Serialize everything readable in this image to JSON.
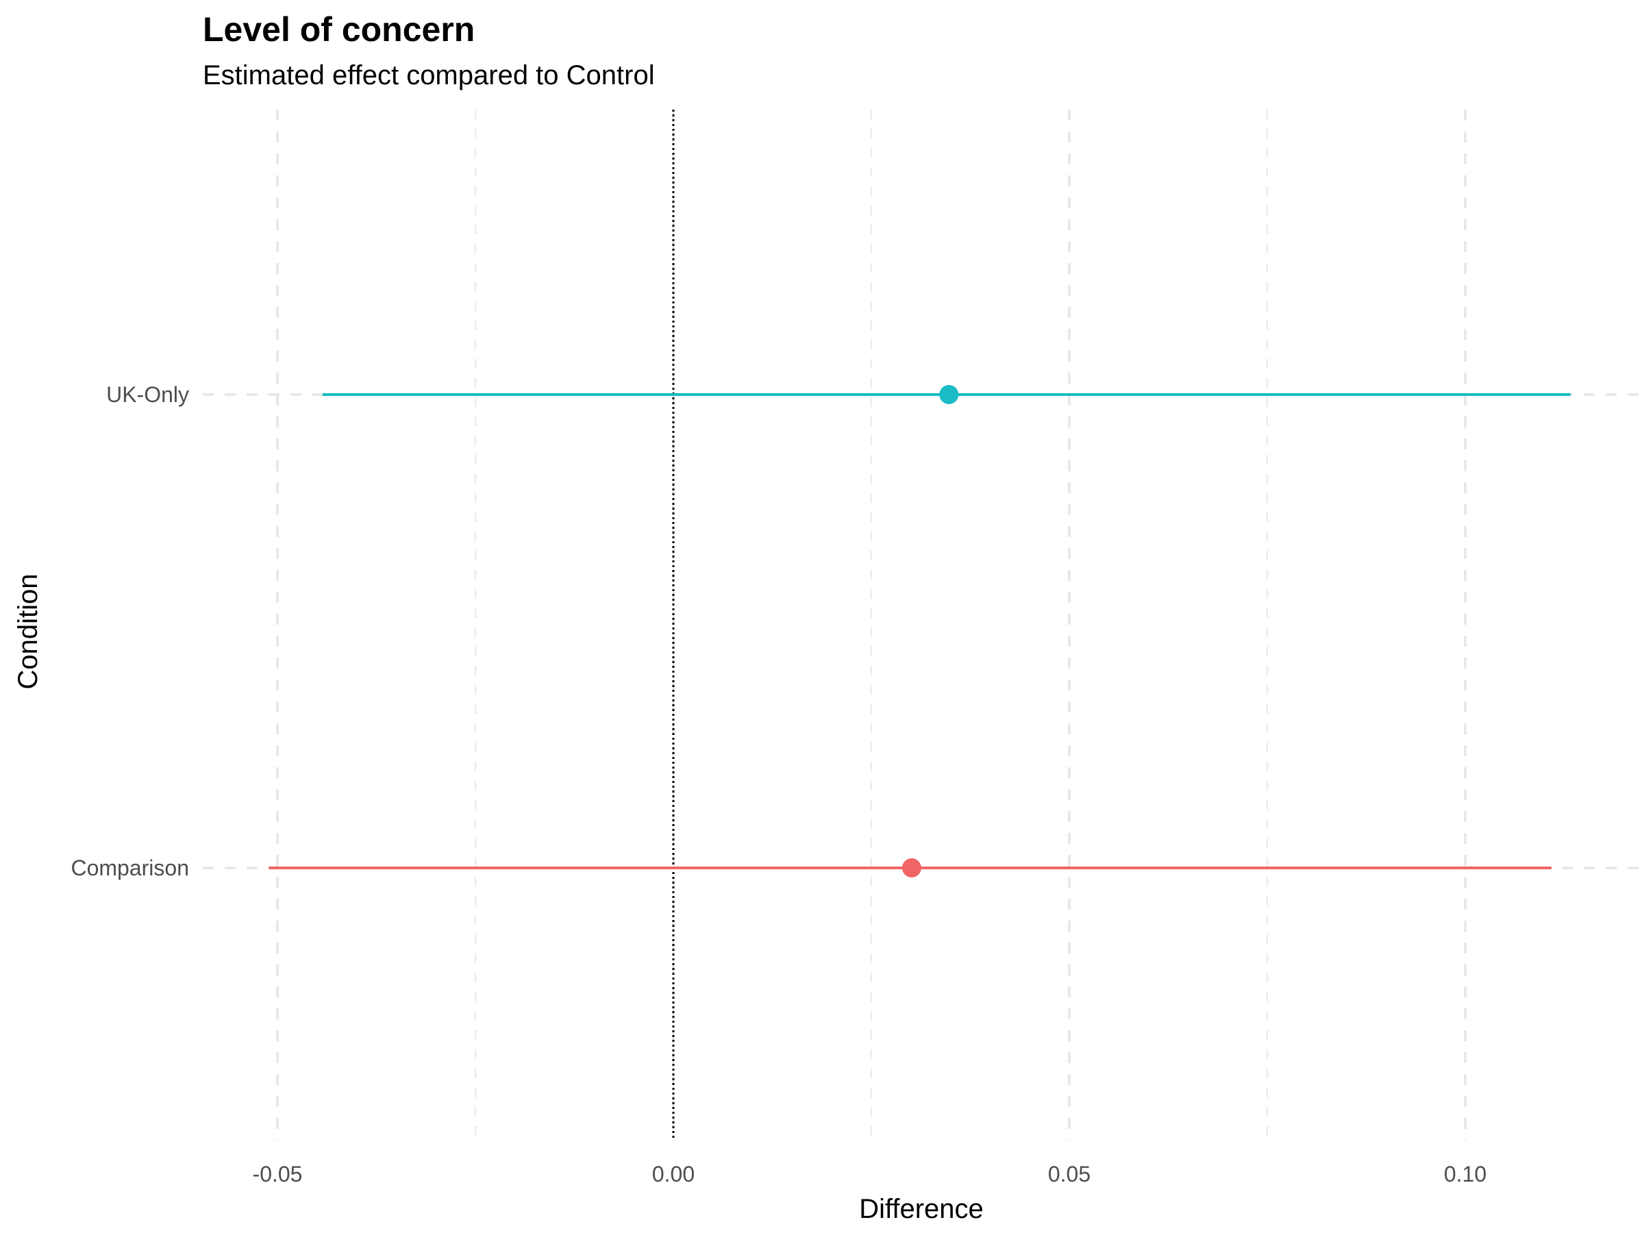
{
  "chart_data": {
    "type": "scatter",
    "title": "Level of concern",
    "subtitle": "Estimated effect compared to Control",
    "xlabel": "Difference",
    "ylabel": "Condition",
    "xlim": [
      -0.0667,
      0.1213
    ],
    "x_ticks": [
      -0.05,
      0.0,
      0.05,
      0.1
    ],
    "x_tick_labels": [
      "-0.05",
      "0.00",
      "0.05",
      "0.10"
    ],
    "x_minor_ticks": [
      -0.025,
      0.025,
      0.075
    ],
    "categories": [
      "Comparison",
      "UK-Only"
    ],
    "reference_line": 0,
    "grid": true,
    "legend": "none",
    "series": [
      {
        "category": "UK-Only",
        "estimate": 0.0348,
        "lower": -0.0443,
        "upper": 0.1133,
        "color": "#1ABBC4"
      },
      {
        "category": "Comparison",
        "estimate": 0.0301,
        "lower": -0.0511,
        "upper": 0.1109,
        "color": "#F06565"
      }
    ]
  }
}
